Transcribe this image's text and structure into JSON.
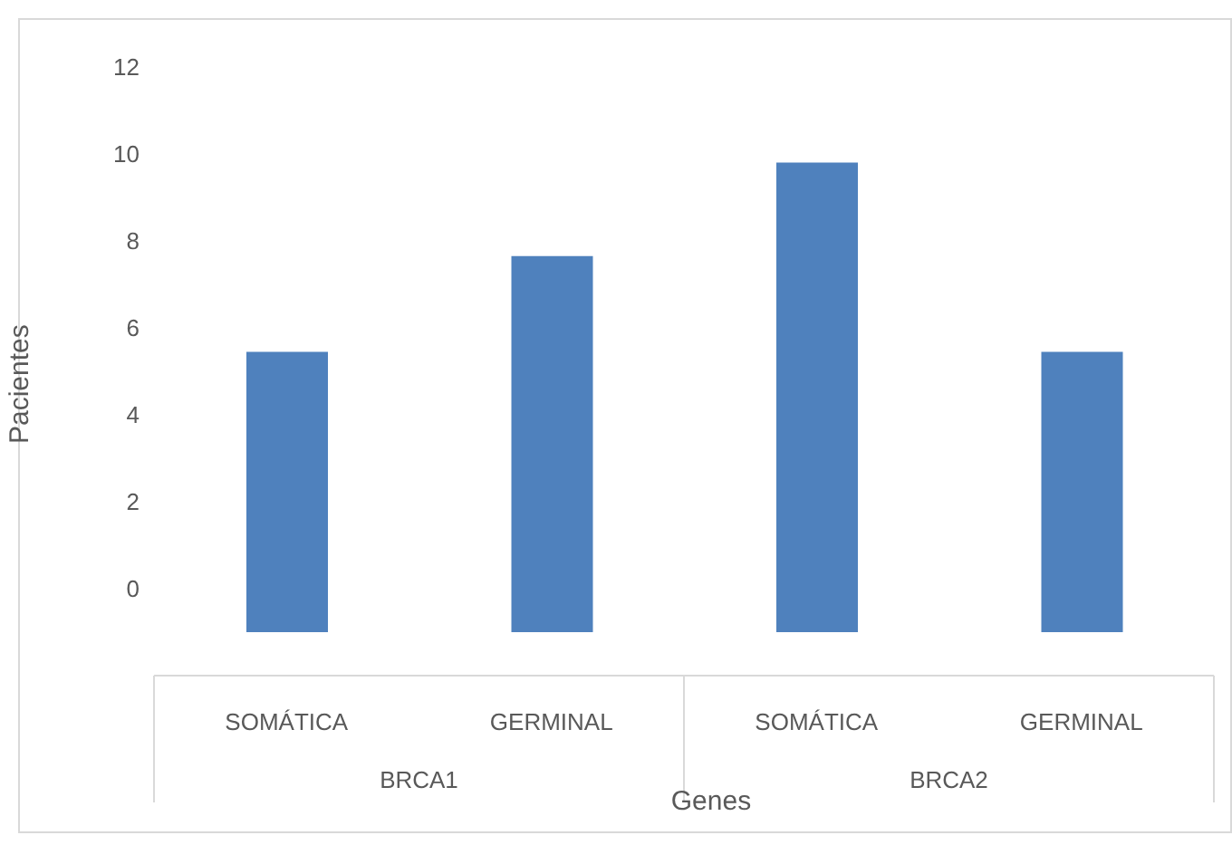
{
  "chart_data": {
    "type": "bar",
    "xlabel": "Genes",
    "ylabel": "Pacientes",
    "categories": [
      "SOMÁTICA",
      "GERMINAL",
      "SOMÁTICA",
      "GERMINAL"
    ],
    "annotations": [
      "BRCA1",
      "BRCA2"
    ],
    "values": [
      6.45,
      8.65,
      10.8,
      6.45
    ],
    "base": [
      -1,
      -1,
      -1,
      -1
    ],
    "color": "#4f81bd",
    "ylim": [
      -2,
      12
    ],
    "yticks": [
      0,
      2,
      4,
      6,
      8,
      10,
      12
    ],
    "grid": false,
    "legend": false
  }
}
